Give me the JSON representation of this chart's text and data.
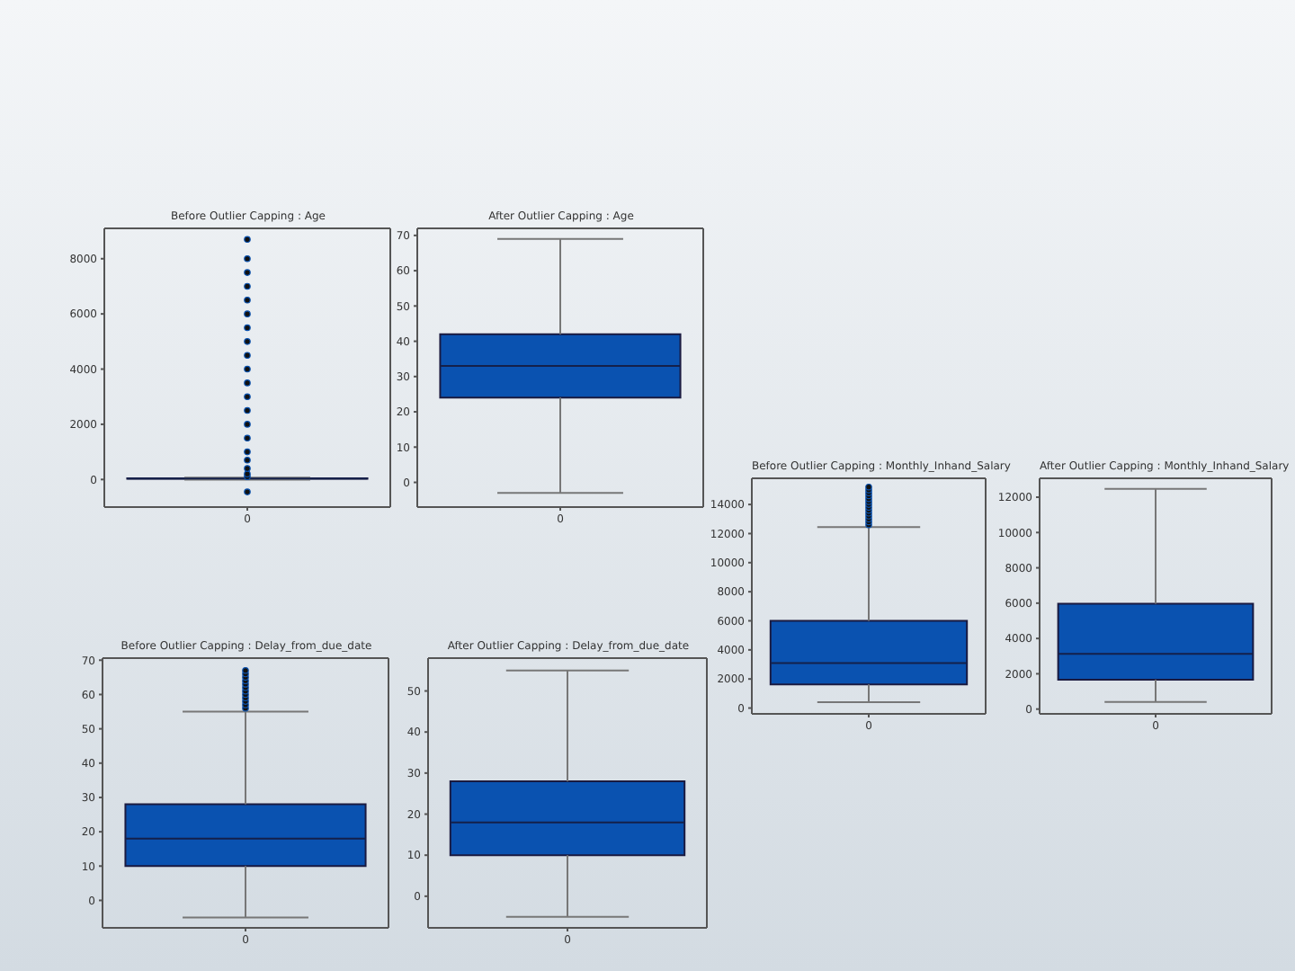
{
  "chart_data": [
    {
      "type": "box",
      "title": "Before Outlier Capping : Age",
      "categories": [
        "0"
      ],
      "series": [
        {
          "color": "#0a52b0",
          "boxes": [
            {
              "low": -3,
              "q1": 24,
              "median": 33,
              "q3": 42,
              "high": 69,
              "outliers": [
                -450,
                100,
                200,
                400,
                700,
                1000,
                1500,
                2000,
                2500,
                3000,
                3500,
                4000,
                4500,
                5000,
                5500,
                6000,
                6500,
                7000,
                7500,
                8000,
                8700
              ]
            }
          ]
        }
      ],
      "ylim": [
        -1000,
        9100
      ],
      "yticks": [
        0,
        2000,
        4000,
        6000,
        8000
      ]
    },
    {
      "type": "box",
      "title": "After Outlier Capping : Age",
      "categories": [
        "0"
      ],
      "series": [
        {
          "color": "#0a52b0",
          "boxes": [
            {
              "low": -3,
              "q1": 24,
              "median": 33,
              "q3": 42,
              "high": 69
            }
          ]
        }
      ],
      "ylim": [
        -7,
        72
      ],
      "yticks": [
        0,
        10,
        20,
        30,
        40,
        50,
        60,
        70
      ]
    },
    {
      "type": "box",
      "title": "Before Outlier Capping : Monthly_Inhand_Salary",
      "categories": [
        "0"
      ],
      "series": [
        {
          "color": "#0a52b0",
          "boxes": [
            {
              "low": 400,
              "q1": 1630,
              "median": 3100,
              "q3": 6000,
              "high": 12450,
              "outliers": [
                12600,
                12800,
                13000,
                13200,
                13400,
                13600,
                13800,
                14000,
                14200,
                14400,
                14600,
                14800,
                15000,
                15200
              ]
            }
          ]
        }
      ],
      "ylim": [
        -400,
        15800
      ],
      "yticks": [
        0,
        2000,
        4000,
        6000,
        8000,
        10000,
        12000,
        14000
      ]
    },
    {
      "type": "box",
      "title": "After Outlier Capping : Monthly_Inhand_Salary",
      "categories": [
        "0"
      ],
      "series": [
        {
          "color": "#0a52b0",
          "boxes": [
            {
              "low": 400,
              "q1": 1670,
              "median": 3130,
              "q3": 5970,
              "high": 12470
            }
          ]
        }
      ],
      "ylim": [
        -270,
        13070
      ],
      "yticks": [
        0,
        2000,
        4000,
        6000,
        8000,
        10000,
        12000
      ]
    },
    {
      "type": "box",
      "title": "Before Outlier Capping : Delay_from_due_date",
      "categories": [
        "0"
      ],
      "series": [
        {
          "color": "#0a52b0",
          "boxes": [
            {
              "low": -5,
              "q1": 10,
              "median": 18,
              "q3": 28,
              "high": 55,
              "outliers": [
                56,
                57,
                58,
                59,
                60,
                61,
                62,
                63,
                64,
                65,
                66,
                67
              ]
            }
          ]
        }
      ],
      "ylim": [
        -8,
        70.6
      ],
      "yticks": [
        0,
        10,
        20,
        30,
        40,
        50,
        60,
        70
      ]
    },
    {
      "type": "box",
      "title": "After Outlier Capping : Delay_from_due_date",
      "categories": [
        "0"
      ],
      "series": [
        {
          "color": "#0a52b0",
          "boxes": [
            {
              "low": -5,
              "q1": 10,
              "median": 18,
              "q3": 28,
              "high": 55
            }
          ]
        }
      ],
      "ylim": [
        -7.7,
        58
      ],
      "yticks": [
        0,
        10,
        20,
        30,
        40,
        50
      ]
    }
  ]
}
